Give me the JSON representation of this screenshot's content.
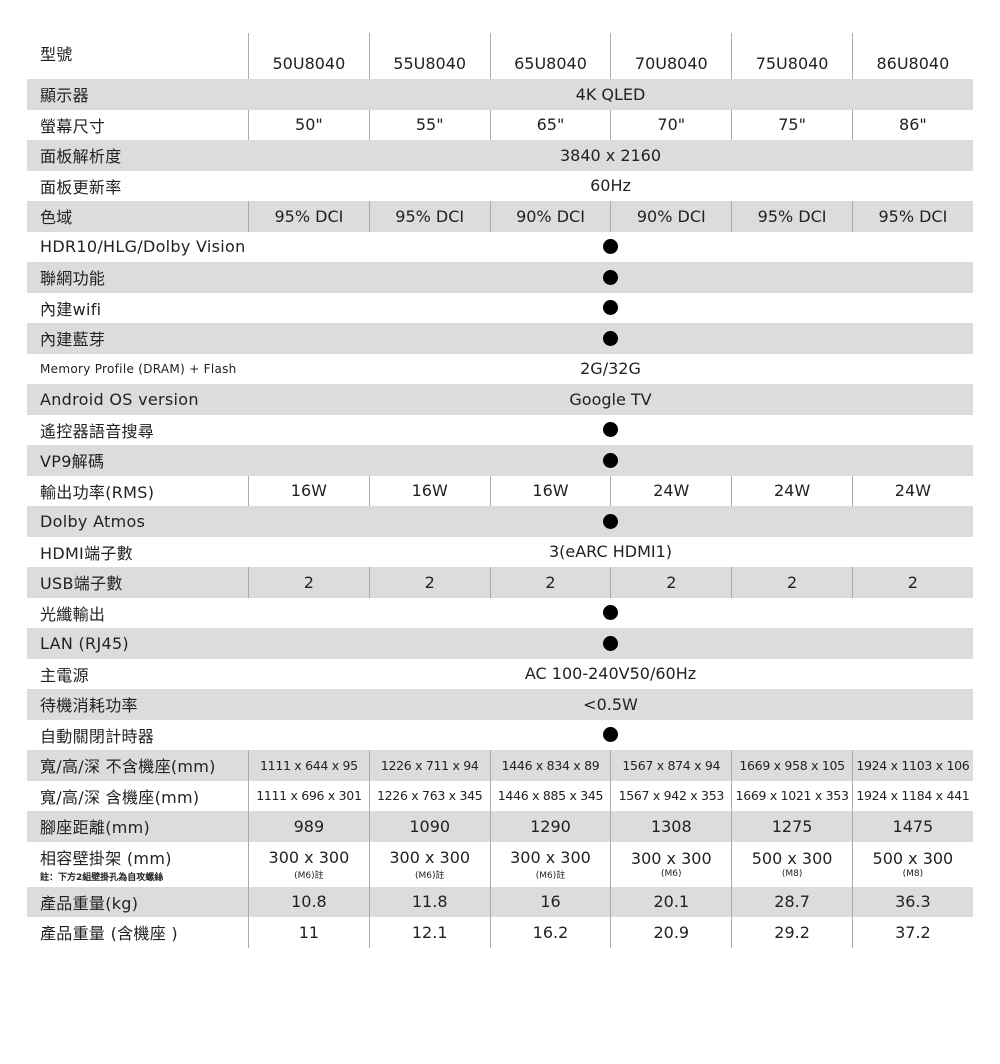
{
  "header": {
    "label": "型號",
    "models": [
      "50U8040",
      "55U8040",
      "65U8040",
      "70U8040",
      "75U8040",
      "86U8040"
    ]
  },
  "rows": [
    {
      "label": "顯示器",
      "merged": "4K QLED"
    },
    {
      "label": "螢幕尺寸",
      "values": [
        "50\"",
        "55\"",
        "65\"",
        "70\"",
        "75\"",
        "86\""
      ]
    },
    {
      "label": "面板解析度",
      "merged": "3840 x 2160"
    },
    {
      "label": "面板更新率",
      "merged": "60Hz"
    },
    {
      "label": "色域",
      "values": [
        "95% DCI",
        "95% DCI",
        "90% DCI",
        "90% DCI",
        "95% DCI",
        "95% DCI"
      ]
    },
    {
      "label": "HDR10/HLG/Dolby Vision",
      "dot": true
    },
    {
      "label": "聯網功能",
      "dot": true
    },
    {
      "label": "內建wifi",
      "dot": true
    },
    {
      "label": "內建藍芽",
      "dot": true
    },
    {
      "label": "Memory Profile  (DRAM) + Flash",
      "merged": "2G/32G",
      "small": true
    },
    {
      "label": "Android OS version",
      "merged": "Google TV"
    },
    {
      "label": "遙控器語音搜尋",
      "dot": true
    },
    {
      "label": "VP9解碼",
      "dot": true
    },
    {
      "label": "輸出功率(RMS)",
      "values": [
        "16W",
        "16W",
        "16W",
        "24W",
        "24W",
        "24W"
      ]
    },
    {
      "label": "Dolby Atmos",
      "dot": true
    },
    {
      "label": "HDMI端子數",
      "merged": "3(eARC HDMI1)"
    },
    {
      "label": "USB端子數",
      "values": [
        "2",
        "2",
        "2",
        "2",
        "2",
        "2"
      ]
    },
    {
      "label": "光纖輸出",
      "dot": true
    },
    {
      "label": "LAN (RJ45)",
      "dot": true
    },
    {
      "label": "主電源",
      "merged": "AC 100-240V50/60Hz"
    },
    {
      "label": "待機消耗功率",
      "merged": "<0.5W"
    },
    {
      "label": "自動關閉計時器",
      "dot": true
    },
    {
      "label": "寬/高/深  不含機座(mm)",
      "values": [
        "1111 x 644 x 95",
        "1226 x 711 x 94",
        "1446 x 834 x 89",
        "1567 x 874 x 94",
        "1669 x 958 x 105",
        "1924 x 1103 x 106"
      ],
      "dim": true
    },
    {
      "label": "寬/高/深  含機座(mm)",
      "values": [
        "1111 x 696 x 301",
        "1226 x 763 x 345",
        "1446 x 885 x 345",
        "1567 x 942 x 353",
        "1669 x 1021 x 353",
        "1924 x 1184 x 441"
      ],
      "dim": true
    },
    {
      "label": "腳座距離(mm)",
      "values": [
        "989",
        "1090",
        "1290",
        "1308",
        "1275",
        "1475"
      ]
    },
    {
      "label": "相容壁掛架 (mm)",
      "note": "註：下方2組壁掛孔為自攻螺絲",
      "values": [
        "300 x 300",
        "300 x 300",
        "300 x 300",
        "300 x 300",
        "500 x 300",
        "500 x 300"
      ],
      "subs": [
        "(M6)註",
        "(M6)註",
        "(M6)註",
        "(M6)",
        "(M8)",
        "(M8)"
      ]
    },
    {
      "label": "產品重量(kg)",
      "values": [
        "10.8",
        "11.8",
        "16",
        "20.1",
        "28.7",
        "36.3"
      ]
    },
    {
      "label": "產品重量 (含機座 )",
      "values": [
        "11",
        "12.1",
        "16.2",
        "20.9",
        "29.2",
        "37.2"
      ]
    }
  ],
  "colors": {
    "stripe": "#dcdcdc",
    "divider": "#aaaaaa",
    "dot": "#000000"
  },
  "icons": {
    "supported": "filled-circle"
  }
}
